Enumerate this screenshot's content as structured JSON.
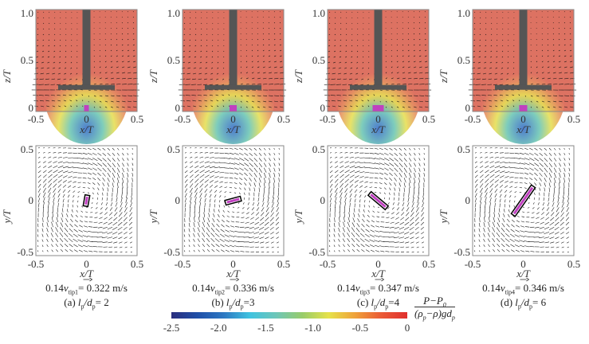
{
  "chart_data": [
    {
      "type": "vector-field",
      "view": "side",
      "panel": "a",
      "xlabel": "x/T",
      "ylabel": "z/T",
      "xticks": [
        "-0.5",
        "0",
        "0.5"
      ],
      "yticks": [
        "0",
        "0.5",
        "1.0"
      ],
      "xlim": [
        -0.5,
        0.5
      ],
      "ylim": [
        0,
        1.0
      ]
    },
    {
      "type": "vector-field",
      "view": "side",
      "panel": "b",
      "xlabel": "x/T",
      "ylabel": "z/T",
      "xticks": [
        "-0.5",
        "0",
        "0.5"
      ],
      "yticks": [
        "0",
        "0.5",
        "1.0"
      ],
      "xlim": [
        -0.5,
        0.5
      ],
      "ylim": [
        0,
        1.0
      ]
    },
    {
      "type": "vector-field",
      "view": "side",
      "panel": "c",
      "xlabel": "x/T",
      "ylabel": "z/T",
      "xticks": [
        "-0.5",
        "0",
        "0.5"
      ],
      "yticks": [
        "0",
        "0.5",
        "1.0"
      ],
      "xlim": [
        -0.5,
        0.5
      ],
      "ylim": [
        0,
        1.0
      ]
    },
    {
      "type": "vector-field",
      "view": "side",
      "panel": "d",
      "xlabel": "x/T",
      "ylabel": "z/T",
      "xticks": [
        "-0.5",
        "0",
        "0.5"
      ],
      "yticks": [
        "0",
        "0.5",
        "1.0"
      ],
      "xlim": [
        -0.5,
        0.5
      ],
      "ylim": [
        0,
        1.0
      ]
    },
    {
      "type": "vector-field",
      "view": "top",
      "panel": "a",
      "xlabel": "x/T",
      "ylabel": "y/T",
      "xticks": [
        "-0.5",
        "0",
        "0.5"
      ],
      "yticks": [
        "-0.5",
        "0",
        "0.5"
      ],
      "xlim": [
        -0.5,
        0.5
      ],
      "ylim": [
        -0.5,
        0.5
      ],
      "particle_angle_deg": 80
    },
    {
      "type": "vector-field",
      "view": "top",
      "panel": "b",
      "xlabel": "x/T",
      "ylabel": "y/T",
      "xticks": [
        "-0.5",
        "0",
        "0.5"
      ],
      "yticks": [
        "-0.5",
        "0",
        "0.5"
      ],
      "xlim": [
        -0.5,
        0.5
      ],
      "ylim": [
        -0.5,
        0.5
      ],
      "particle_angle_deg": 15
    },
    {
      "type": "vector-field",
      "view": "top",
      "panel": "c",
      "xlabel": "x/T",
      "ylabel": "y/T",
      "xticks": [
        "-0.5",
        "0",
        "0.5"
      ],
      "yticks": [
        "-0.5",
        "0",
        "0.5"
      ],
      "xlim": [
        -0.5,
        0.5
      ],
      "ylim": [
        -0.5,
        0.5
      ],
      "particle_angle_deg": -40
    },
    {
      "type": "vector-field",
      "view": "top",
      "panel": "d",
      "xlabel": "x/T",
      "ylabel": "y/T",
      "xticks": [
        "-0.5",
        "0",
        "0.5"
      ],
      "yticks": [
        "-0.5",
        "0",
        "0.5"
      ],
      "xlim": [
        -0.5,
        0.5
      ],
      "ylim": [
        -0.5,
        0.5
      ],
      "particle_angle_deg": 55
    }
  ],
  "panels": [
    {
      "ref": "0.14",
      "v": "v",
      "sub": "tip1",
      "speed": "= 0.322 m/s",
      "label": "(a) ",
      "l": "l",
      "lsub": "p",
      "d": "/d",
      "dsub": "p",
      "ratio": "= 2"
    },
    {
      "ref": "0.14",
      "v": "v",
      "sub": "tip2",
      "speed": "= 0.336 m/s",
      "label": "(b) ",
      "l": "l",
      "lsub": "p",
      "d": "/d",
      "dsub": "p",
      "ratio": "=3"
    },
    {
      "ref": "0.14",
      "v": "v",
      "sub": "tip3",
      "speed": "= 0.347 m/s",
      "label": "(c) ",
      "l": "l",
      "lsub": "p",
      "d": "/d",
      "dsub": "p",
      "ratio": "=4"
    },
    {
      "ref": "0.14",
      "v": "v",
      "sub": "tip4",
      "speed": "= 0.346 m/s",
      "label": "(d) ",
      "l": "l",
      "lsub": "p",
      "d": "/d",
      "dsub": "p",
      "ratio": "= 6"
    }
  ],
  "colorbar": {
    "ticks": [
      "-2.5",
      "-2.0",
      "-1.5",
      "-1.0",
      "-0.5",
      "0"
    ],
    "range": [
      -2.5,
      0
    ],
    "colormap": "jet",
    "label_num": "P−P",
    "label_num_sub": "0",
    "label_den": "(ρ",
    "label_den_sub1": "p",
    "label_den_mid": "−ρ)gd",
    "label_den_sub2": "p"
  },
  "colors": {
    "background_high": "#dd7262",
    "shaft": "#555555",
    "particle": "#c040c0"
  }
}
